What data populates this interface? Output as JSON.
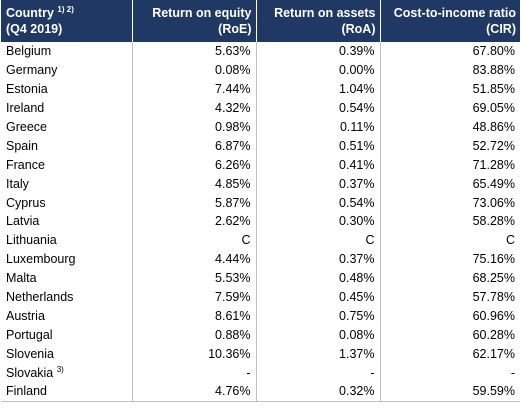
{
  "chart_data": {
    "type": "table",
    "columns": [
      {
        "label": "Country",
        "sup": "1) 2)",
        "sub": "(Q4 2019)"
      },
      {
        "label": "Return on equity",
        "sub": "(RoE)"
      },
      {
        "label": "Return on assets",
        "sub": "(RoA)"
      },
      {
        "label": "Cost-to-income ratio",
        "sub": "(CIR)"
      }
    ],
    "rows": [
      {
        "country": "Belgium",
        "roe": "5.63%",
        "roa": "0.39%",
        "cir": "67.80%"
      },
      {
        "country": "Germany",
        "roe": "0.08%",
        "roa": "0.00%",
        "cir": "83.88%"
      },
      {
        "country": "Estonia",
        "roe": "7.44%",
        "roa": "1.04%",
        "cir": "51.85%"
      },
      {
        "country": "Ireland",
        "roe": "4.32%",
        "roa": "0.54%",
        "cir": "69.05%"
      },
      {
        "country": "Greece",
        "roe": "0.98%",
        "roa": "0.11%",
        "cir": "48.86%"
      },
      {
        "country": "Spain",
        "roe": "6.87%",
        "roa": "0.51%",
        "cir": "52.72%"
      },
      {
        "country": "France",
        "roe": "6.26%",
        "roa": "0.41%",
        "cir": "71.28%"
      },
      {
        "country": "Italy",
        "roe": "4.85%",
        "roa": "0.37%",
        "cir": "65.49%"
      },
      {
        "country": "Cyprus",
        "roe": "5.87%",
        "roa": "0.54%",
        "cir": "73.06%"
      },
      {
        "country": "Latvia",
        "roe": "2.62%",
        "roa": "0.30%",
        "cir": "58.28%"
      },
      {
        "country": "Lithuania",
        "roe": "C",
        "roa": "C",
        "cir": "C"
      },
      {
        "country": "Luxembourg",
        "roe": "4.44%",
        "roa": "0.37%",
        "cir": "75.16%"
      },
      {
        "country": "Malta",
        "roe": "5.53%",
        "roa": "0.48%",
        "cir": "68.25%"
      },
      {
        "country": "Netherlands",
        "roe": "7.59%",
        "roa": "0.45%",
        "cir": "57.78%"
      },
      {
        "country": "Austria",
        "roe": "8.61%",
        "roa": "0.75%",
        "cir": "60.96%"
      },
      {
        "country": "Portugal",
        "roe": "0.88%",
        "roa": "0.08%",
        "cir": "60.28%"
      },
      {
        "country": "Slovenia",
        "roe": "10.36%",
        "roa": "1.37%",
        "cir": "62.17%"
      },
      {
        "country": "Slovakia",
        "sup": "3)",
        "roe": "-",
        "roa": "-",
        "cir": "-"
      },
      {
        "country": "Finland",
        "roe": "4.76%",
        "roa": "0.32%",
        "cir": "59.59%"
      }
    ]
  },
  "style": {
    "header_bg": "#1f3864",
    "header_fg": "#ffffff",
    "grid_color": "#bfbfbf"
  }
}
